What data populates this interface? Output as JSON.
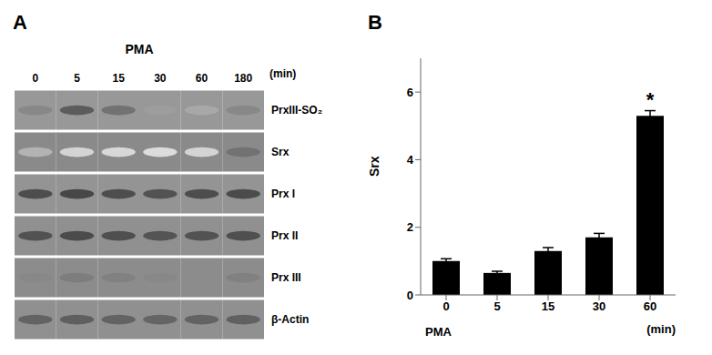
{
  "chart_data": [
    {
      "type": "heatmap",
      "title": "A",
      "xlabel": "PMA",
      "annotations": [
        {
          "text": "(min)"
        }
      ],
      "categories": [
        "0",
        "5",
        "15",
        "30",
        "60",
        "180"
      ],
      "series": [
        {
          "name": "PrxIII-SO₂",
          "color": "#989898",
          "values": [
            0.55,
            0.75,
            0.65,
            0.45,
            0.4,
            0.55
          ]
        },
        {
          "name": "Srx",
          "color": "#8a8a8a",
          "values": [
            0.35,
            0.2,
            0.18,
            0.16,
            0.2,
            0.65
          ]
        },
        {
          "name": "Prx I",
          "color": "#949494",
          "values": [
            0.82,
            0.85,
            0.82,
            0.8,
            0.82,
            0.83
          ]
        },
        {
          "name": "Prx II",
          "color": "#909090",
          "values": [
            0.8,
            0.83,
            0.81,
            0.79,
            0.8,
            0.81
          ]
        },
        {
          "name": "Prx III",
          "color": "#8c8c8c",
          "values": [
            0.55,
            0.6,
            0.58,
            0.55,
            0.53,
            0.58
          ]
        },
        {
          "name": "β-Actin",
          "color": "#909090",
          "values": [
            0.72,
            0.74,
            0.72,
            0.71,
            0.72,
            0.73
          ]
        }
      ]
    },
    {
      "type": "bar",
      "title": "B",
      "categories": [
        "0",
        "5",
        "15",
        "30",
        "60"
      ],
      "values": [
        1.0,
        0.65,
        1.3,
        1.7,
        5.3
      ],
      "errors": [
        0.07,
        0.05,
        0.1,
        0.12,
        0.15
      ],
      "color": "#000000",
      "xlabel": "PMA",
      "ylabel": "Srx",
      "ylim": [
        0,
        7
      ],
      "yticks": [
        0,
        2,
        4,
        6
      ],
      "grid": false,
      "annotations": [
        {
          "text": "(min)"
        },
        {
          "text": "*",
          "x": "60"
        }
      ]
    }
  ]
}
